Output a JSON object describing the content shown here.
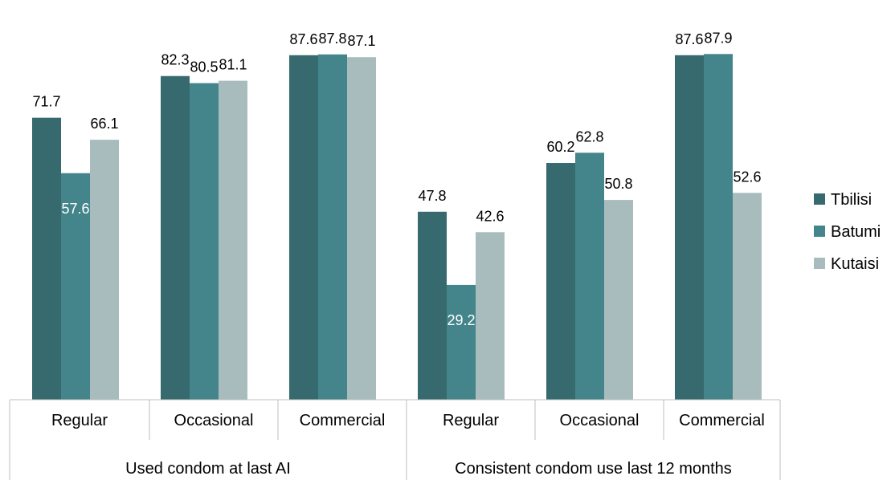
{
  "chart_data": {
    "type": "bar",
    "groups": [
      {
        "label": "Used condom at last AI",
        "categories": [
          "Regular",
          "Occasional",
          "Commercial"
        ]
      },
      {
        "label": "Consistent condom use last 12 months",
        "categories": [
          "Regular",
          "Occasional",
          "Commercial"
        ]
      }
    ],
    "categories": [
      "Regular",
      "Occasional",
      "Commercial",
      "Regular",
      "Occasional",
      "Commercial"
    ],
    "series": [
      {
        "name": "Tbilisi",
        "color": "#366a6e",
        "values": [
          71.7,
          82.3,
          87.6,
          47.8,
          60.2,
          87.6
        ]
      },
      {
        "name": "Batumi",
        "color": "#43858a",
        "values": [
          57.6,
          80.5,
          87.8,
          29.2,
          62.8,
          87.9
        ]
      },
      {
        "name": "Kutaisi",
        "color": "#a9bcbd",
        "values": [
          66.1,
          81.1,
          87.1,
          42.6,
          50.8,
          52.6
        ]
      }
    ],
    "value_labels_inside": [
      [
        1,
        0
      ],
      [
        1,
        3
      ]
    ],
    "ylim": [
      0,
      100
    ],
    "grid": false,
    "legend": "right",
    "title": "",
    "xlabel": "",
    "ylabel": ""
  }
}
